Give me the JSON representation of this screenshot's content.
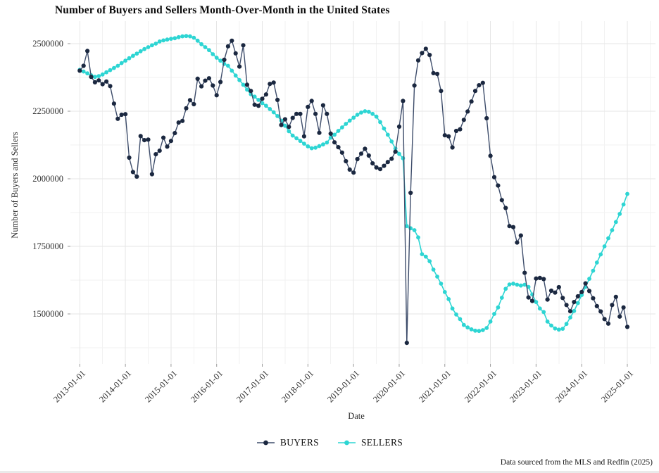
{
  "page": {
    "background": "#ffffff"
  },
  "chart_data": {
    "type": "line",
    "title": "Number of Buyers and Sellers Month-Over-Month in the United States",
    "xlabel": "Date",
    "ylabel": "Number of Buyers and Sellers",
    "footer": "Data sourced from the MLS and Redfin (2025)",
    "x_unit": "month",
    "x_start": "2013-01",
    "x_end": "2025-01",
    "n_points": 145,
    "grid": true,
    "legend_position": "bottom",
    "ylim": [
      1320000,
      2585000
    ],
    "yticks": [
      2500000,
      2250000,
      2000000,
      1750000,
      1500000
    ],
    "ytick_labels": [
      "2500000",
      "2250000",
      "2000000",
      "1750000",
      "1500000"
    ],
    "xticks": [
      "2013-01-01",
      "2014-01-01",
      "2015-01-01",
      "2016-01-01",
      "2017-01-01",
      "2018-01-01",
      "2019-01-01",
      "2020-01-01",
      "2021-01-01",
      "2022-01-01",
      "2023-01-01",
      "2024-01-01",
      "2025-01-01"
    ],
    "colors": {
      "buyers_dot": "#1b2840",
      "buyers_line": "#3e4d6b",
      "sellers": "#2dd5d3",
      "grid_major": "#e6e6e6",
      "grid_minor": "#f2f2f2",
      "tick_mark": "#999999"
    },
    "series": [
      {
        "name": "BUYERS",
        "values": [
          2400000,
          2418000,
          2473000,
          2377000,
          2357000,
          2364000,
          2350000,
          2360000,
          2343000,
          2278000,
          2222000,
          2237000,
          2239000,
          2078000,
          2025000,
          2008000,
          2158000,
          2143000,
          2145000,
          2017000,
          2091000,
          2104000,
          2152000,
          2119000,
          2140000,
          2169000,
          2208000,
          2214000,
          2261000,
          2291000,
          2276000,
          2370000,
          2342000,
          2363000,
          2372000,
          2345000,
          2309000,
          2358000,
          2440000,
          2490000,
          2511000,
          2464000,
          2415000,
          2494000,
          2348000,
          2325000,
          2274000,
          2270000,
          2296000,
          2312000,
          2351000,
          2356000,
          2292000,
          2199000,
          2220000,
          2192000,
          2225000,
          2240000,
          2240000,
          2157000,
          2266000,
          2288000,
          2240000,
          2170000,
          2272000,
          2240000,
          2167000,
          2135000,
          2117000,
          2097000,
          2065000,
          2034000,
          2023000,
          2073000,
          2093000,
          2111000,
          2086000,
          2057000,
          2042000,
          2036000,
          2048000,
          2062000,
          2074000,
          2100000,
          2193000,
          2288000,
          1393000,
          1948000,
          2345000,
          2438000,
          2465000,
          2481000,
          2458000,
          2391000,
          2388000,
          2325000,
          2161000,
          2157000,
          2116000,
          2177000,
          2183000,
          2218000,
          2249000,
          2286000,
          2325000,
          2346000,
          2355000,
          2224000,
          2085000,
          2006000,
          1975000,
          1921000,
          1892000,
          1825000,
          1821000,
          1764000,
          1790000,
          1652000,
          1561000,
          1548000,
          1631000,
          1633000,
          1629000,
          1553000,
          1586000,
          1579000,
          1599000,
          1559000,
          1533000,
          1510000,
          1544000,
          1565000,
          1581000,
          1613000,
          1585000,
          1558000,
          1529000,
          1509000,
          1481000,
          1464000,
          1533000,
          1563000,
          1490000,
          1524000,
          1452000
        ]
      },
      {
        "name": "SELLERS",
        "values": [
          2403000,
          2397000,
          2390000,
          2383000,
          2377000,
          2380000,
          2386000,
          2394000,
          2402000,
          2410000,
          2418000,
          2428000,
          2437000,
          2446000,
          2455000,
          2463000,
          2472000,
          2480000,
          2487000,
          2494000,
          2500000,
          2508000,
          2512000,
          2515000,
          2518000,
          2520000,
          2524000,
          2527000,
          2528000,
          2527000,
          2522000,
          2511000,
          2498000,
          2487000,
          2476000,
          2461000,
          2448000,
          2437000,
          2425000,
          2418000,
          2400000,
          2382000,
          2365000,
          2348000,
          2330000,
          2313000,
          2304000,
          2292000,
          2280000,
          2270000,
          2258000,
          2246000,
          2232000,
          2215000,
          2196000,
          2176000,
          2160000,
          2150000,
          2140000,
          2130000,
          2120000,
          2113000,
          2115000,
          2121000,
          2127000,
          2134000,
          2152000,
          2163000,
          2177000,
          2190000,
          2203000,
          2215000,
          2226000,
          2237000,
          2245000,
          2250000,
          2248000,
          2240000,
          2230000,
          2210000,
          2186000,
          2163000,
          2138000,
          2112000,
          2092000,
          2076000,
          1825000,
          1817000,
          1810000,
          1783000,
          1721000,
          1712000,
          1695000,
          1664000,
          1638000,
          1612000,
          1581000,
          1555000,
          1520000,
          1498000,
          1481000,
          1459000,
          1450000,
          1443000,
          1438000,
          1437000,
          1440000,
          1448000,
          1472000,
          1500000,
          1524000,
          1560000,
          1593000,
          1609000,
          1612000,
          1608000,
          1605000,
          1608000,
          1600000,
          1572000,
          1544000,
          1520000,
          1507000,
          1472000,
          1457000,
          1446000,
          1442000,
          1445000,
          1463000,
          1487000,
          1511000,
          1540000,
          1570000,
          1600000,
          1630000,
          1660000,
          1690000,
          1720000,
          1750000,
          1780000,
          1810000,
          1840000,
          1870000,
          1905000,
          1944000
        ]
      }
    ]
  }
}
